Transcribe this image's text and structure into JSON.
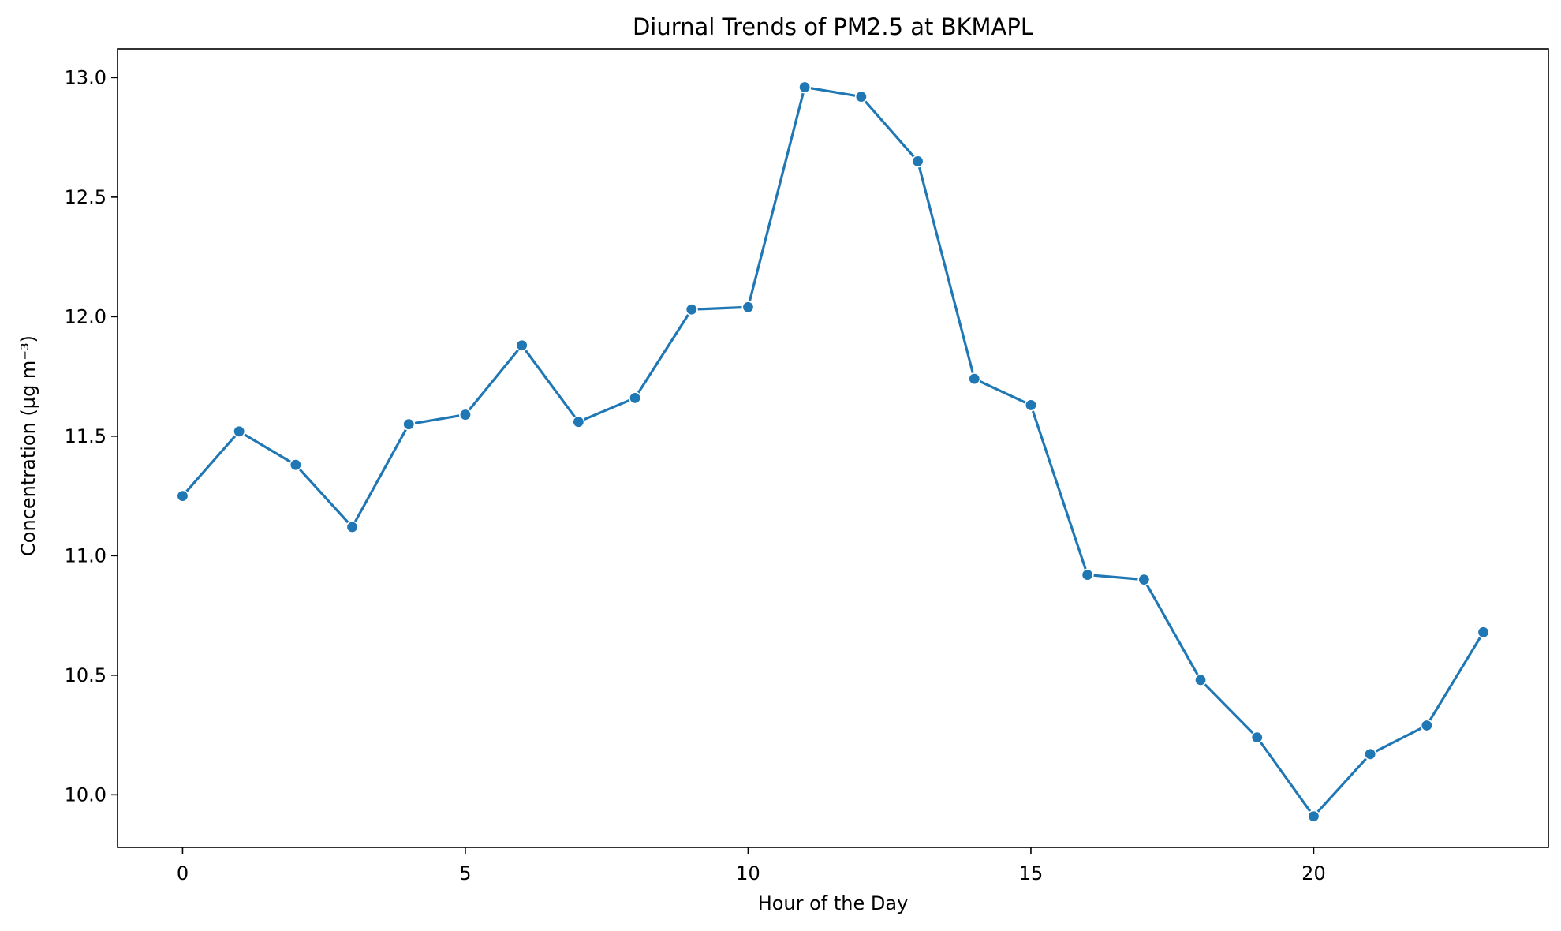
{
  "chart_data": {
    "type": "line",
    "title": "Diurnal Trends of PM2.5 at BKMAPL",
    "xlabel": "Hour of the Day",
    "ylabel": "Concentration (µg m⁻³)",
    "xlim": [
      -1.15,
      24.15
    ],
    "ylim": [
      9.78,
      13.12
    ],
    "x_ticks": [
      0,
      5,
      10,
      15,
      20
    ],
    "y_ticks": [
      10.0,
      10.5,
      11.0,
      11.5,
      12.0,
      12.5,
      13.0
    ],
    "x_tick_labels": [
      "0",
      "5",
      "10",
      "15",
      "20"
    ],
    "y_tick_labels": [
      "10.0",
      "10.5",
      "11.0",
      "11.5",
      "12.0",
      "12.5",
      "13.0"
    ],
    "grid": false,
    "legend": "none",
    "series": [
      {
        "color": "#1f77b4",
        "marker": "circle",
        "x": [
          0,
          1,
          2,
          3,
          4,
          5,
          6,
          7,
          8,
          9,
          10,
          11,
          12,
          13,
          14,
          15,
          16,
          17,
          18,
          19,
          20,
          21,
          22,
          23
        ],
        "values": [
          11.25,
          11.52,
          11.38,
          11.12,
          11.55,
          11.59,
          11.88,
          11.56,
          11.66,
          12.03,
          12.04,
          12.96,
          12.92,
          12.65,
          11.74,
          11.63,
          10.92,
          10.9,
          10.48,
          10.24,
          9.91,
          10.17,
          10.29,
          10.68
        ]
      }
    ]
  }
}
